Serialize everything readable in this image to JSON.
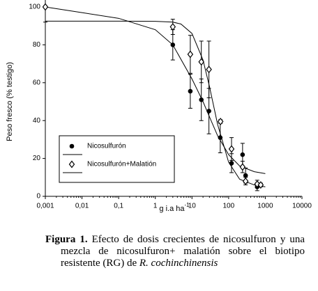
{
  "chart_data": {
    "type": "scatter",
    "y_label": "Peso fresco (% testigo)",
    "x_label": "g i.a ha",
    "x_label_sup": "-1",
    "log_x": true,
    "xlim": [
      0.001,
      10000
    ],
    "xticks": [
      {
        "value": 0.001,
        "label": "0,001"
      },
      {
        "value": 0.01,
        "label": "0,01"
      },
      {
        "value": 0.1,
        "label": "0,1"
      },
      1,
      10,
      100,
      1000,
      10000
    ],
    "ylim": [
      0,
      100
    ],
    "yticks": [
      0,
      20,
      40,
      60,
      80,
      100
    ],
    "series": [
      {
        "name": "Nicosulfurón",
        "color": "#000000",
        "marker": "circle",
        "x": [
          0.001,
          3,
          9,
          18,
          29,
          59,
          120,
          240,
          290,
          600
        ],
        "values": [
          100,
          80,
          55.5,
          51,
          45,
          31,
          17.5,
          22,
          11,
          5
        ],
        "errors": [
          8,
          8,
          9,
          11,
          12,
          8,
          5,
          6,
          4,
          2
        ],
        "fit_x": [
          0.001,
          0.01,
          0.1,
          1,
          3,
          10,
          20,
          30,
          50,
          100,
          200,
          500,
          1000
        ],
        "fit_y": [
          100,
          97,
          94,
          88,
          80,
          62,
          50,
          42,
          32,
          22,
          16,
          13,
          12
        ]
      },
      {
        "name": "Nicosulfurón+Malatión",
        "color": "#000000",
        "marker": "diamond",
        "x": [
          0.001,
          3,
          9,
          18,
          29,
          60,
          120,
          240,
          290,
          600,
          750
        ],
        "values": [
          100,
          89.5,
          75,
          71,
          67,
          39.5,
          25,
          15.5,
          8,
          6.5,
          6
        ],
        "errors": [
          0,
          4,
          10,
          11,
          15,
          1,
          6,
          3,
          2,
          2,
          1
        ],
        "fit_x": [
          0.001,
          0.1,
          1,
          3,
          5,
          10,
          20,
          30,
          50,
          100,
          200,
          500,
          1000
        ],
        "fit_y": [
          92.5,
          92.5,
          92.4,
          92,
          91,
          86,
          72,
          58,
          38,
          18,
          9,
          6,
          5
        ]
      }
    ],
    "caption_label": "Figura 1.",
    "caption_text": "Efecto de dosis crecientes de nicosulfuron y una mezcla de nicosulfuron+ malatión sobre el biotipo resistente (RG) de",
    "caption_italic": "R. cochinchinensis"
  }
}
